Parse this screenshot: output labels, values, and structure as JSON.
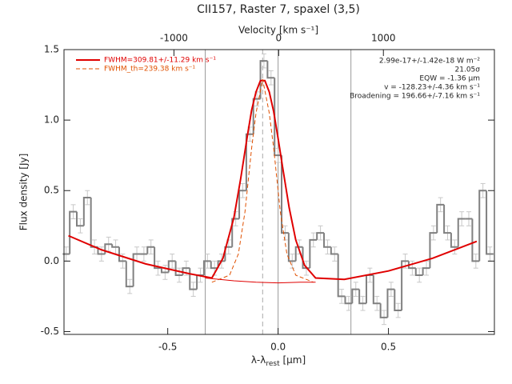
{
  "chart_data": {
    "type": "step",
    "title": "CII157, Raster 7, spaxel (3,5)",
    "xlabel": [
      "λ-λ",
      "rest",
      " [μm]"
    ],
    "ylabel": "Flux density [Jy]",
    "x2label": "Velocity [km s⁻¹]",
    "xlim": [
      -0.97,
      0.98
    ],
    "ylim": [
      -0.52,
      1.5
    ],
    "x2lim": [
      -2050,
      2060
    ],
    "xticks": [
      -0.5,
      {
        "value": 0,
        "label": "0.0"
      },
      0.5
    ],
    "yticks": [
      -0.5,
      {
        "value": 0,
        "label": "0.0"
      },
      0.5,
      {
        "value": 1,
        "label": "1.0"
      },
      1.5
    ],
    "x2ticks": [
      -1000,
      0,
      1000
    ],
    "color": "#808080",
    "error_color": "#c8c8c8",
    "error": 0.05,
    "x": [
      -0.96,
      -0.928,
      -0.896,
      -0.864,
      -0.832,
      -0.8,
      -0.768,
      -0.736,
      -0.704,
      -0.672,
      -0.64,
      -0.608,
      -0.576,
      -0.544,
      -0.512,
      -0.48,
      -0.448,
      -0.416,
      -0.384,
      -0.352,
      -0.32,
      -0.288,
      -0.256,
      -0.224,
      -0.192,
      -0.16,
      -0.128,
      -0.096,
      -0.064,
      -0.032,
      0,
      0.032,
      0.064,
      0.096,
      0.128,
      0.16,
      0.192,
      0.224,
      0.256,
      0.288,
      0.32,
      0.352,
      0.384,
      0.416,
      0.448,
      0.48,
      0.512,
      0.544,
      0.576,
      0.608,
      0.64,
      0.672,
      0.704,
      0.736,
      0.768,
      0.8,
      0.832,
      0.864,
      0.896,
      0.928,
      0.96
    ],
    "values": [
      0.05,
      0.35,
      0.25,
      0.45,
      0.1,
      0.05,
      0.12,
      0.1,
      0,
      -0.18,
      0.05,
      0.05,
      0.1,
      -0.05,
      -0.08,
      0,
      -0.1,
      -0.05,
      -0.2,
      -0.1,
      0,
      -0.05,
      0,
      0.1,
      0.3,
      0.5,
      0.9,
      1.15,
      1.42,
      1.3,
      0.75,
      0.2,
      0,
      0.1,
      -0.05,
      0.15,
      0.2,
      0.1,
      0.05,
      -0.25,
      -0.3,
      -0.2,
      -0.3,
      -0.1,
      -0.3,
      -0.4,
      -0.2,
      -0.35,
      0,
      -0.05,
      -0.1,
      -0.05,
      0.2,
      0.4,
      0.2,
      0.1,
      0.3,
      0.3,
      0,
      0.5,
      0.05
    ],
    "fits": [
      {
        "name": "FWHM=309.81+/-11.29 km s⁻¹",
        "color": "#e00000",
        "dash": false,
        "width": 2,
        "x": [
          -0.95,
          -0.8,
          -0.6,
          -0.4,
          -0.3,
          -0.25,
          -0.2,
          -0.17,
          -0.14,
          -0.12,
          -0.1,
          -0.08,
          -0.06,
          -0.04,
          -0.02,
          0,
          0.02,
          0.05,
          0.08,
          0.12,
          0.17,
          0.3,
          0.5,
          0.7,
          0.9
        ],
        "values": [
          0.18,
          0.08,
          -0.02,
          -0.09,
          -0.12,
          0.02,
          0.31,
          0.58,
          0.88,
          1.07,
          1.2,
          1.28,
          1.28,
          1.2,
          1.06,
          0.87,
          0.67,
          0.38,
          0.15,
          -0.03,
          -0.12,
          -0.13,
          -0.07,
          0.02,
          0.14
        ]
      },
      {
        "name": "FWHM_th=239.38 km s⁻¹",
        "color": "#e05000",
        "dash": true,
        "width": 1,
        "x": [
          -0.3,
          -0.22,
          -0.18,
          -0.15,
          -0.12,
          -0.1,
          -0.07,
          -0.04,
          -0.02,
          0.01,
          0.04,
          0.08,
          0.16
        ],
        "values": [
          -0.15,
          -0.1,
          0.05,
          0.35,
          0.8,
          1.05,
          1.29,
          1.05,
          0.8,
          0.35,
          0.05,
          -0.1,
          -0.15
        ]
      },
      {
        "color": "#e00000",
        "dash": false,
        "width": 1,
        "x": [
          -0.33,
          -0.2,
          -0.1,
          0,
          0.1,
          0.17
        ],
        "values": [
          -0.12,
          -0.14,
          -0.15,
          -0.155,
          -0.15,
          -0.15
        ]
      }
    ],
    "vlines": [
      -0.33,
      0,
      0.33
    ],
    "center_line": -0.07,
    "annotations": [
      "2.99e-17+/-1.42e-18 W m⁻²",
      "21.05σ",
      "EQW = -1.36 μm",
      "v = -128.23+/-4.36 km s⁻¹",
      "Broadening = 196.66+/-7.16 km s⁻¹"
    ]
  }
}
